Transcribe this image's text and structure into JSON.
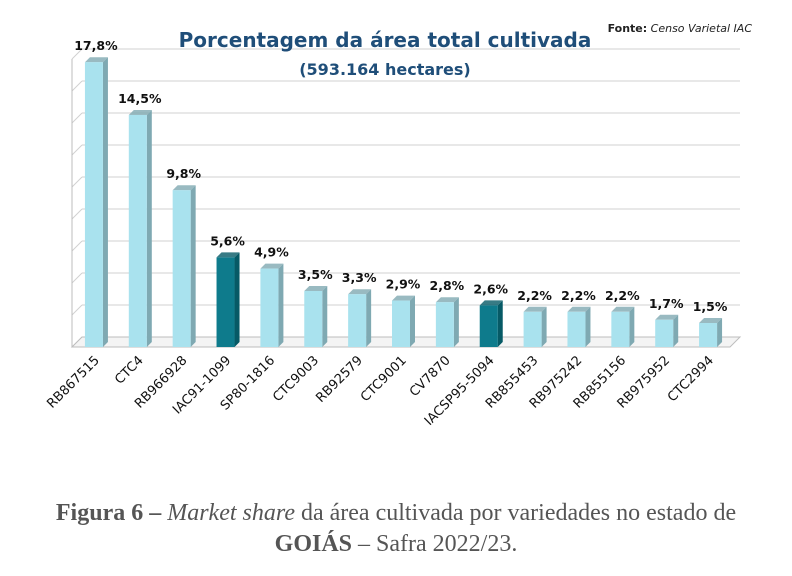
{
  "chart_data": {
    "type": "bar",
    "title": "Porcentagem da área total cultivada",
    "subtitle": "(593.164 hectares)",
    "source_label": "Fonte:",
    "source_text": "Censo Varietal IAC",
    "categories": [
      "RB867515",
      "CTC4",
      "RB966928",
      "IAC91-1099",
      "SP80-1816",
      "CTC9003",
      "RB92579",
      "CTC9001",
      "CV7870",
      "IACSP95-5094",
      "RB855453",
      "RB975242",
      "RB855156",
      "RB975952",
      "CTC2994"
    ],
    "values": [
      17.8,
      14.5,
      9.8,
      5.6,
      4.9,
      3.5,
      3.3,
      2.9,
      2.8,
      2.6,
      2.2,
      2.2,
      2.2,
      1.7,
      1.5
    ],
    "value_labels": [
      "17,8%",
      "14,5%",
      "9,8%",
      "5,6%",
      "4,9%",
      "3,5%",
      "3,3%",
      "2,9%",
      "2,8%",
      "2,6%",
      "2,2%",
      "2,2%",
      "2,2%",
      "1,7%",
      "1,5%"
    ],
    "highlighted": [
      "IAC91-1099",
      "IACSP95-5094"
    ],
    "ylim": [
      0,
      18
    ],
    "grid": true,
    "legend": "none",
    "xlabel": "",
    "ylabel": "",
    "colors": {
      "bar": "#a9e2ee",
      "bar_side": "#7fa9b2",
      "highlight": "#0e7b8c",
      "highlight_side": "#065a66",
      "grid": "#d0d0d0",
      "title": "#1f4e79"
    }
  },
  "caption": {
    "figure_label": "Figura 6 –",
    "italic_text": "Market share",
    "text_1": "da área cultivada por variedades no estado de",
    "bold_state": "GOIÁS",
    "text_2": "– Safra 2022/23."
  }
}
